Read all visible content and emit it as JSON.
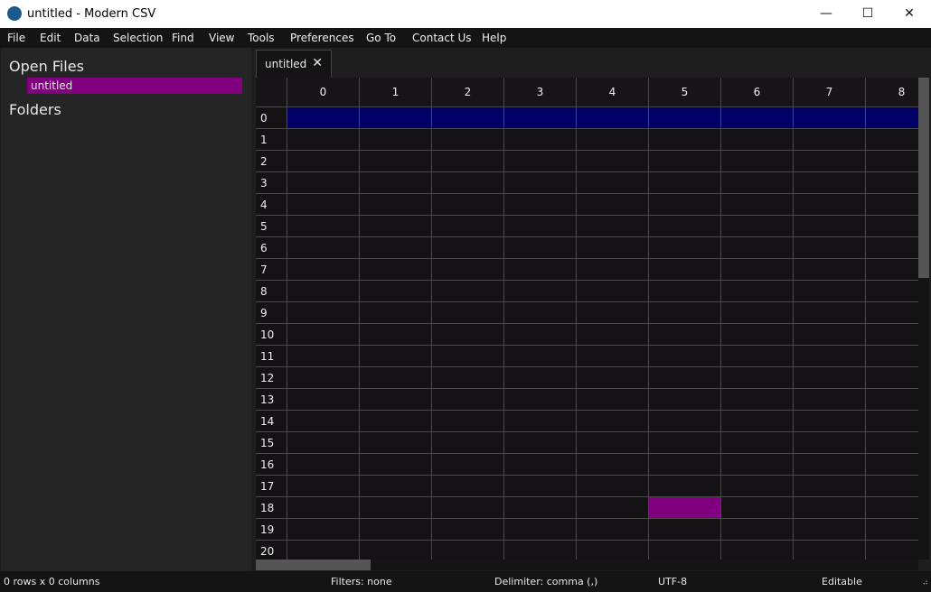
{
  "window": {
    "title": "untitled - Modern CSV",
    "minimize": "—",
    "maximize": "☐",
    "close": "✕"
  },
  "menu": [
    "File",
    "Edit",
    "Data",
    "Selection",
    "Find",
    "View",
    "Tools",
    "Preferences",
    "Go To",
    "Contact Us",
    "Help"
  ],
  "sidebar": {
    "open_files": "Open Files",
    "files": [
      "untitled"
    ],
    "folders": "Folders"
  },
  "tabs": [
    {
      "label": "untitled",
      "close": "✕"
    }
  ],
  "grid": {
    "columns": [
      "0",
      "1",
      "2",
      "3",
      "4",
      "5",
      "6",
      "7",
      "8"
    ],
    "rows": [
      "0",
      "1",
      "2",
      "3",
      "4",
      "5",
      "6",
      "7",
      "8",
      "9",
      "10",
      "11",
      "12",
      "13",
      "14",
      "15",
      "16",
      "17",
      "18",
      "19",
      "20"
    ],
    "selected_row": 0,
    "selected_row_color": "#000066",
    "highlight_cell": {
      "row": 18,
      "col": 5,
      "color": "#800080"
    }
  },
  "status": {
    "size": "0 rows x 0 columns",
    "filters": "Filters: none",
    "delimiter": "Delimiter: comma (,)",
    "encoding": "UTF-8",
    "mode": "Editable"
  },
  "colors": {
    "accent": "#800080",
    "selection": "#000066"
  }
}
